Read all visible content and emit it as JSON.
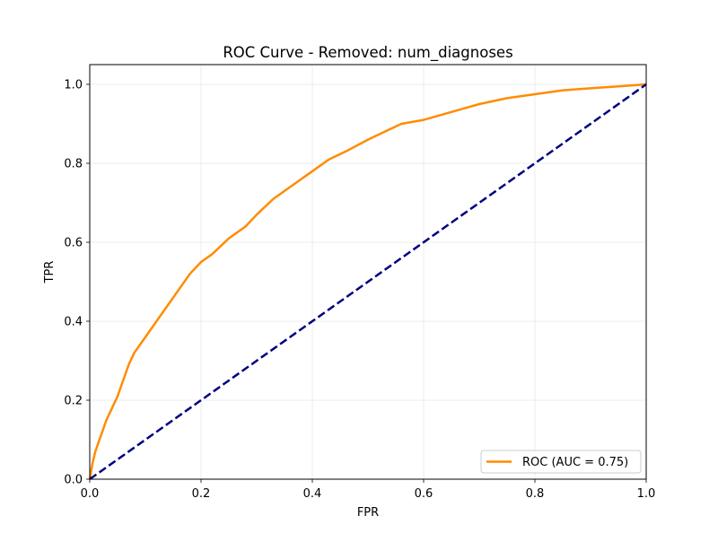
{
  "chart_data": {
    "type": "line",
    "title": "ROC Curve - Removed: num_diagnoses",
    "xlabel": "FPR",
    "ylabel": "TPR",
    "xlim": [
      0.0,
      1.0
    ],
    "ylim": [
      0.0,
      1.05
    ],
    "x_ticks": [
      0.0,
      0.2,
      0.4,
      0.6,
      0.8,
      1.0
    ],
    "y_ticks": [
      0.0,
      0.2,
      0.4,
      0.6,
      0.8,
      1.0
    ],
    "x_tick_labels": [
      "0.0",
      "0.2",
      "0.4",
      "0.6",
      "0.8",
      "1.0"
    ],
    "y_tick_labels": [
      "0.0",
      "0.2",
      "0.4",
      "0.6",
      "0.8",
      "1.0"
    ],
    "grid": true,
    "legend_position": "lower-right",
    "series": [
      {
        "name": "ROC (AUC = 0.75)",
        "color": "#ff8c00",
        "style": "solid",
        "x": [
          0.0,
          0.005,
          0.01,
          0.02,
          0.03,
          0.04,
          0.05,
          0.06,
          0.07,
          0.08,
          0.1,
          0.12,
          0.14,
          0.16,
          0.18,
          0.2,
          0.22,
          0.25,
          0.28,
          0.3,
          0.33,
          0.36,
          0.38,
          0.4,
          0.43,
          0.46,
          0.5,
          0.53,
          0.56,
          0.6,
          0.65,
          0.7,
          0.75,
          0.8,
          0.85,
          0.9,
          0.95,
          1.0
        ],
        "y": [
          0.0,
          0.04,
          0.07,
          0.11,
          0.15,
          0.18,
          0.21,
          0.25,
          0.29,
          0.32,
          0.36,
          0.4,
          0.44,
          0.48,
          0.52,
          0.55,
          0.57,
          0.61,
          0.64,
          0.67,
          0.71,
          0.74,
          0.76,
          0.78,
          0.81,
          0.83,
          0.86,
          0.88,
          0.9,
          0.91,
          0.93,
          0.95,
          0.965,
          0.975,
          0.985,
          0.99,
          0.995,
          1.0
        ]
      },
      {
        "name": "",
        "color": "#000080",
        "style": "dashed",
        "x": [
          0.0,
          1.0
        ],
        "y": [
          0.0,
          1.0
        ]
      }
    ],
    "legend": {
      "entries": [
        "ROC (AUC = 0.75)"
      ]
    }
  }
}
